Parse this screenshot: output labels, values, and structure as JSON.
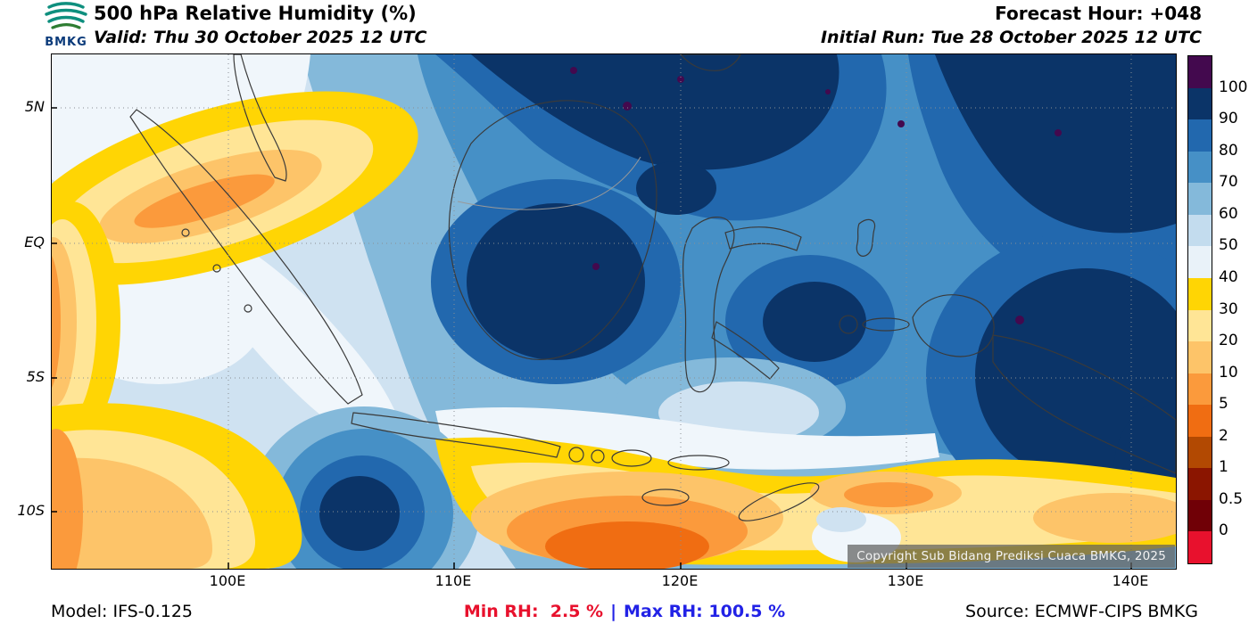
{
  "header": {
    "logo_text": "BMKG",
    "title": "500 hPa Relative Humidity (%)",
    "valid": "Valid: Thu 30 October 2025 12 UTC",
    "forecast_hour": "Forecast Hour: +048",
    "initial_run": "Initial Run: Tue 28 October 2025 12 UTC"
  },
  "map": {
    "lat_labels": [
      "5N",
      "EQ",
      "5S",
      "10S"
    ],
    "lon_labels": [
      "100E",
      "110E",
      "120E",
      "130E",
      "140E"
    ],
    "copyright": "Copyright Sub Bidang Prediksi Cuaca BMKG, 2025"
  },
  "colorbar": {
    "ticks": [
      "100",
      "90",
      "80",
      "70",
      "60",
      "50",
      "40",
      "30",
      "20",
      "10",
      "5",
      "2",
      "1",
      "0.5",
      "0"
    ],
    "colors": [
      "#43094e",
      "#0b3468",
      "#2268ae",
      "#4690c6",
      "#84b9da",
      "#c3dcee",
      "#e9f2f9",
      "#ffd504",
      "#ffe596",
      "#fdc469",
      "#fb9a3c",
      "#f06d12",
      "#b24902",
      "#8b1500",
      "#700006",
      "#e8112d"
    ]
  },
  "footer": {
    "model": "Model: IFS-0.125",
    "min_rh": "Min RH:  2.5 %",
    "separator": "|",
    "max_rh": "Max RH: 100.5 %",
    "source": "Source: ECMWF-CIPS BMKG",
    "min_color": "#e8112d",
    "max_color": "#2222e6"
  },
  "chart_data": {
    "type": "heatmap",
    "title": "500 hPa Relative Humidity (%)",
    "units": "%",
    "colorbar_levels": [
      100,
      90,
      80,
      70,
      60,
      50,
      40,
      30,
      20,
      10,
      5,
      2,
      1,
      0.5,
      0
    ],
    "x_ticks": [
      "100E",
      "110E",
      "120E",
      "130E",
      "140E"
    ],
    "y_ticks": [
      "5N",
      "EQ",
      "5S",
      "10S"
    ],
    "min_value": 2.5,
    "max_value": 100.5,
    "legend_position": "right"
  }
}
